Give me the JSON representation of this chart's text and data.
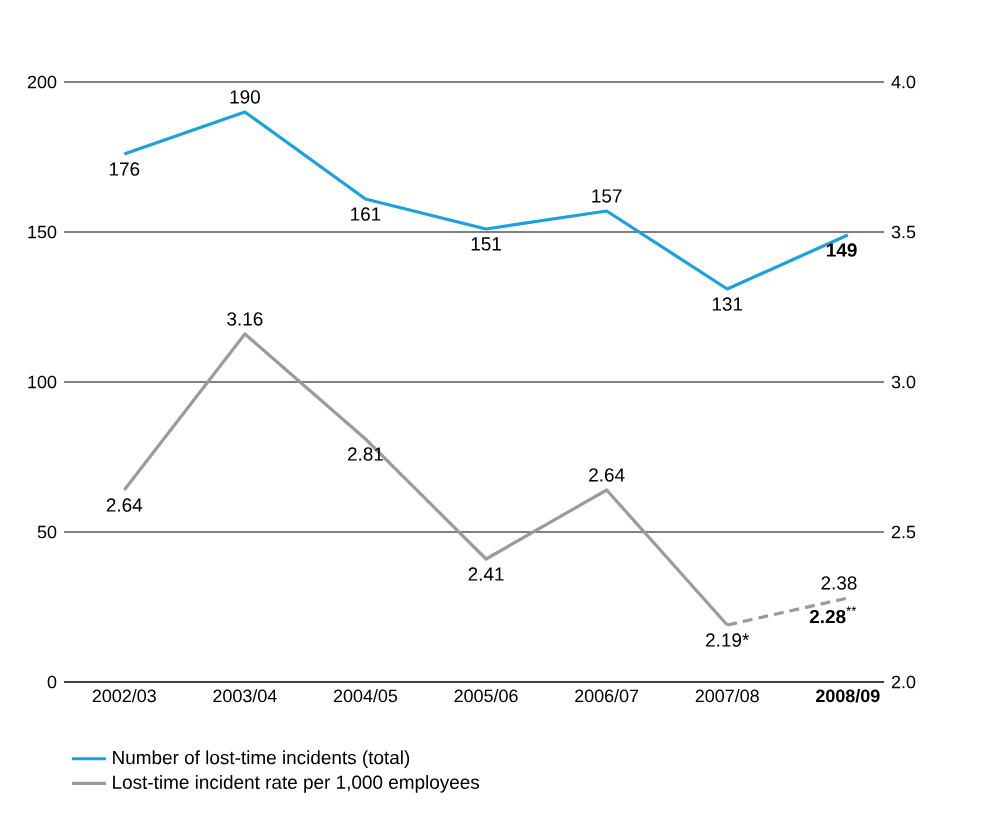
{
  "chart_data": {
    "type": "line",
    "categories": [
      "2002/03",
      "2003/04",
      "2004/05",
      "2005/06",
      "2006/07",
      "2007/08",
      "**2008/09**"
    ],
    "series": [
      {
        "name": "Number of lost-time incidents (total)",
        "color": "#1ba1db",
        "values": [
          176,
          190,
          161,
          151,
          157,
          131,
          149
        ],
        "value_labels": [
          "176",
          "190",
          "161",
          "151",
          "157",
          "131",
          "**149**"
        ]
      },
      {
        "name": "Lost-time incident rate per 1,000 employees",
        "color": "#9b9b9b",
        "axis": "y2",
        "values": [
          2.64,
          3.16,
          2.81,
          2.41,
          2.64,
          2.19,
          null
        ],
        "value_labels": [
          "2.64",
          "3.16",
          "2.81",
          "2.41",
          "2.64",
          "2.19*",
          null
        ]
      },
      {
        "color": "#9b9b9b",
        "axis": "y2",
        "line_style": "dashed",
        "values": [
          null,
          null,
          null,
          null,
          null,
          2.19,
          2.28
        ],
        "value_labels": [
          null,
          null,
          null,
          null,
          null,
          null,
          "**2.28**$^{**}$"
        ]
      }
    ],
    "annotations": [
      "2.38"
    ],
    "ylim": [
      0,
      200
    ],
    "yticks": [
      0,
      50,
      100,
      150,
      200
    ],
    "y2lim": [
      2.0,
      4.0
    ],
    "y2ticks": [
      {
        "value": 2.0,
        "label": "2.0"
      },
      {
        "value": 2.5,
        "label": "2.5"
      },
      {
        "value": 3.0,
        "label": "3.0"
      },
      {
        "value": 3.5,
        "label": "3.5"
      },
      {
        "value": 4.0,
        "label": "4.0"
      }
    ],
    "grid": "y",
    "legend": "bottom"
  }
}
